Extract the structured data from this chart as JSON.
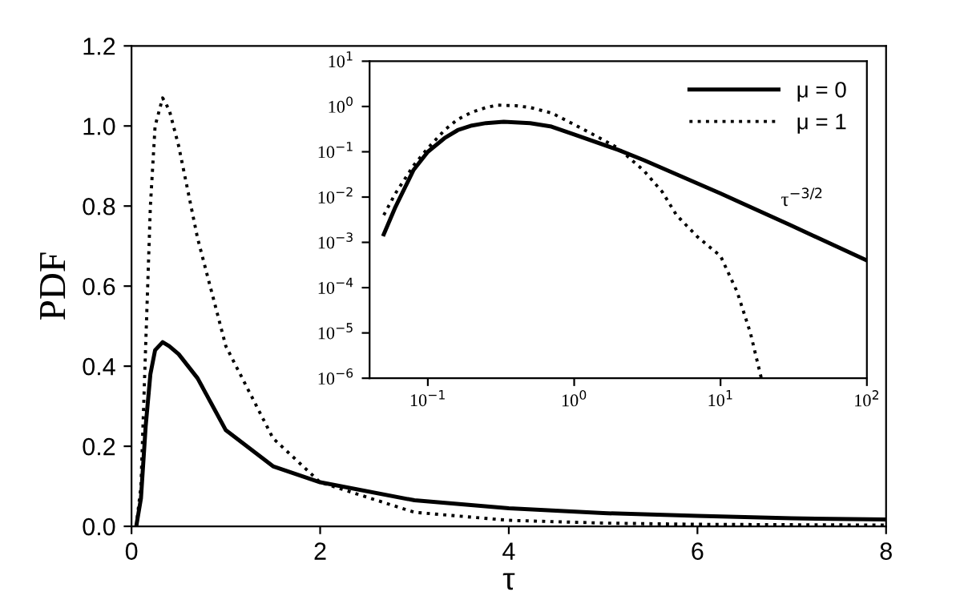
{
  "chart_data": [
    {
      "type": "line",
      "xlabel": "τ",
      "ylabel": "PDF",
      "xlim": [
        0,
        8
      ],
      "ylim": [
        0,
        1.2
      ],
      "xticks": [
        0,
        2,
        4,
        6,
        8
      ],
      "yticks": [
        {
          "value": 0,
          "label": "0.0"
        },
        0.2,
        0.4,
        0.6,
        0.8,
        {
          "value": 1,
          "label": "1.0"
        },
        1.2
      ],
      "grid": false,
      "legend": false,
      "series": [
        {
          "color": "#000000",
          "line_style": "solid",
          "x": [
            0.05,
            0.1,
            0.15,
            0.2,
            0.25,
            0.33,
            0.4,
            0.5,
            0.7,
            1,
            1.5,
            2,
            3,
            4,
            5,
            6,
            7,
            8
          ],
          "values": [
            0.0,
            0.07,
            0.25,
            0.38,
            0.44,
            0.46,
            0.45,
            0.43,
            0.37,
            0.24,
            0.15,
            0.11,
            0.065,
            0.045,
            0.033,
            0.026,
            0.02,
            0.017
          ]
        },
        {
          "color": "#000000",
          "line_style": "dotted",
          "x": [
            0.05,
            0.1,
            0.15,
            0.2,
            0.25,
            0.33,
            0.4,
            0.5,
            0.7,
            1,
            1.5,
            2,
            3,
            4,
            5,
            6,
            8
          ],
          "values": [
            0.0,
            0.1,
            0.45,
            0.8,
            1.0,
            1.07,
            1.04,
            0.95,
            0.72,
            0.45,
            0.22,
            0.11,
            0.035,
            0.015,
            0.008,
            0.005,
            0.003
          ]
        }
      ]
    },
    {
      "type": "line",
      "log": "xy",
      "xlim": [
        0.04,
        100
      ],
      "ylim": [
        1e-06,
        10
      ],
      "xticks": [
        {
          "value": 0.1,
          "label": "10$^{−1}$"
        },
        {
          "value": 1,
          "label": "10$^{0}$"
        },
        {
          "value": 10,
          "label": "10$^{1}$"
        },
        {
          "value": 100,
          "label": "10$^{2}$"
        }
      ],
      "yticks": [
        {
          "value": 1e-06,
          "label": "10$^{−6}$"
        },
        {
          "value": 1e-05,
          "label": "10$^{−5}$"
        },
        {
          "value": 0.0001,
          "label": "10$^{−4}$"
        },
        {
          "value": 0.001,
          "label": "10$^{−3}$"
        },
        {
          "value": 0.01,
          "label": "10$^{−2}$"
        },
        {
          "value": 0.1,
          "label": "10$^{−1}$"
        },
        {
          "value": 1,
          "label": "10$^{0}$"
        },
        {
          "value": 10,
          "label": "10$^{1}$"
        }
      ],
      "grid": false,
      "legend": "top right",
      "annotations": [
        "τ$^{−3/2}$"
      ],
      "series": [
        {
          "name": "μ = 0",
          "color": "#000000",
          "line_style": "solid",
          "x": [
            0.05,
            0.06,
            0.08,
            0.1,
            0.13,
            0.16,
            0.2,
            0.25,
            0.33,
            0.5,
            0.7,
            1,
            2,
            3,
            10,
            30,
            100
          ],
          "values": [
            0.0015,
            0.006,
            0.04,
            0.1,
            0.2,
            0.3,
            0.38,
            0.43,
            0.46,
            0.43,
            0.36,
            0.24,
            0.11,
            0.065,
            0.012,
            0.0024,
            0.0004
          ]
        },
        {
          "name": "μ = 1",
          "color": "#000000",
          "line_style": "dotted",
          "x": [
            0.05,
            0.06,
            0.08,
            0.1,
            0.13,
            0.16,
            0.2,
            0.25,
            0.3,
            0.4,
            0.5,
            0.7,
            1,
            1.5,
            2,
            3,
            4,
            5,
            7,
            10,
            13,
            16,
            19
          ],
          "values": [
            0.004,
            0.012,
            0.05,
            0.12,
            0.3,
            0.52,
            0.75,
            0.95,
            1.07,
            1.04,
            0.95,
            0.72,
            0.4,
            0.2,
            0.12,
            0.038,
            0.013,
            0.004,
            0.0013,
            0.0005,
            8e-05,
            1e-05,
            1e-06
          ]
        }
      ]
    }
  ]
}
